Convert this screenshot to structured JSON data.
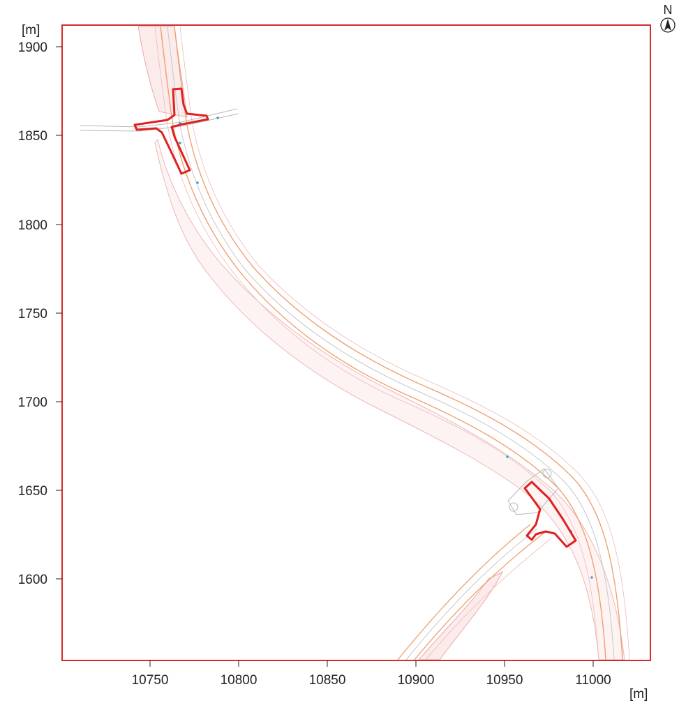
{
  "axes": {
    "x_unit": "[m]",
    "y_unit": "[m]",
    "x_ticks": [
      "10750",
      "10800",
      "10850",
      "10900",
      "10950",
      "11000"
    ],
    "y_ticks": [
      "1900",
      "1850",
      "1800",
      "1750",
      "1700",
      "1650",
      "1600"
    ]
  },
  "north_arrow": {
    "label": "N",
    "icon": "north-arrow-icon"
  },
  "colors": {
    "frame": "#d42b2b",
    "junction_outline": "#e02020",
    "road_edge": "#f0a070",
    "road_centerline": "#c8c8c8",
    "embankment_hatch": "#e8a0a0",
    "survey_point": "#40a0c0"
  }
}
